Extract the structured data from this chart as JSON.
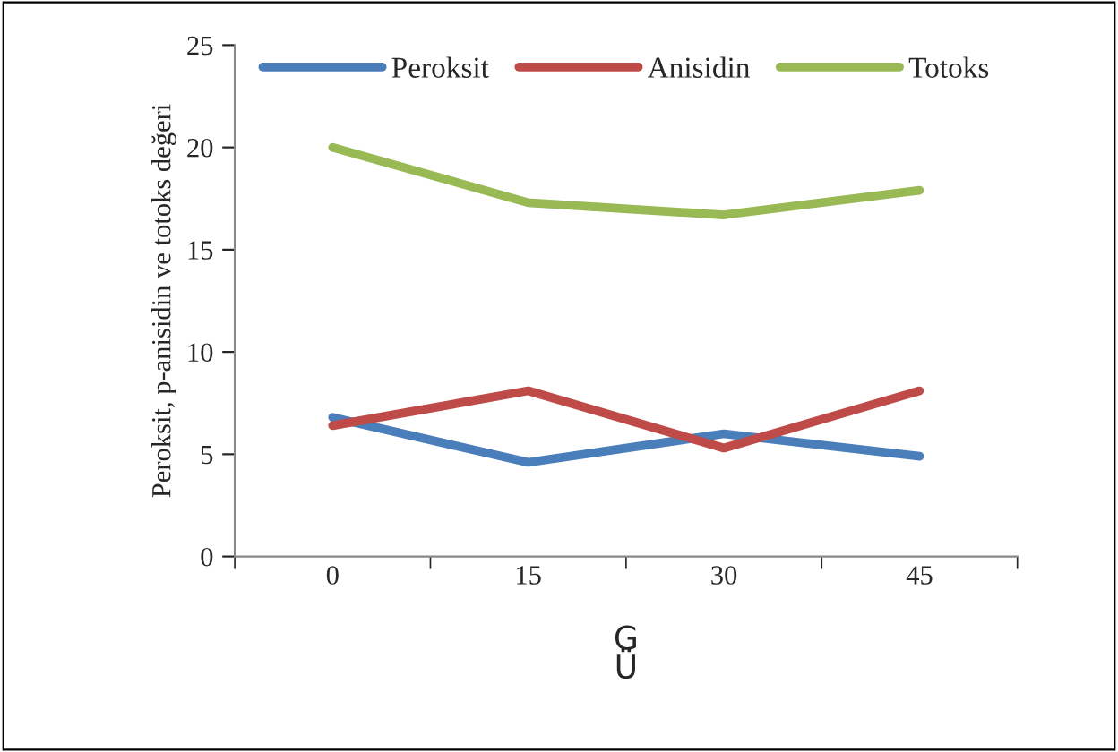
{
  "chart_data": {
    "type": "line",
    "xlabel": "G\nÜ",
    "ylabel": "Peroksit, p-anisidin ve totoks değeri",
    "categories": [
      "0",
      "15",
      "30",
      "45"
    ],
    "series": [
      {
        "name": "Peroksit",
        "color": "#4a7ebb",
        "values": [
          6.8,
          4.6,
          6.0,
          4.9
        ]
      },
      {
        "name": "Anisidin",
        "color": "#be4b48",
        "values": [
          6.4,
          8.1,
          5.3,
          8.1
        ]
      },
      {
        "name": "Totoks",
        "color": "#98b954",
        "values": [
          20.0,
          17.3,
          16.7,
          17.9
        ]
      }
    ],
    "ylim": [
      0,
      25
    ],
    "yticks": [
      0,
      5,
      10,
      15,
      20,
      25
    ],
    "legend": "top",
    "grid": false,
    "marker": "none",
    "line_style": "solid"
  }
}
